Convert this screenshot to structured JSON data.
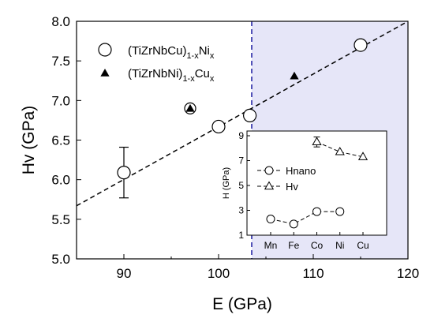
{
  "chart_data": {
    "type": "scatter",
    "xlabel": "E (GPa)",
    "ylabel": "Hv (GPa)",
    "xlim": [
      85,
      120
    ],
    "ylim": [
      5.0,
      8.0
    ],
    "xticks": [
      90,
      100,
      110,
      120
    ],
    "yticks": [
      5.0,
      5.5,
      6.0,
      6.5,
      7.0,
      7.5,
      8.0
    ],
    "xtick_labels": [
      "90",
      "100",
      "110",
      "120"
    ],
    "ytick_labels": [
      "5.0",
      "5.5",
      "6.0",
      "6.5",
      "7.0",
      "7.5",
      "8.0"
    ],
    "grid": false,
    "legend_position": "top-left",
    "shaded_region": {
      "x_from": 103.5,
      "x_to": 120,
      "color": "#e6e6f8",
      "border_color": "#1a1aa0"
    },
    "series": [
      {
        "name": "(TiZrNbCu)1-xNix",
        "legend_parts": [
          "(TiZrNbCu)",
          "1-x",
          "Ni",
          "x"
        ],
        "marker": "open-circle",
        "points": [
          {
            "x": 90,
            "y": 6.09,
            "yerr": [
              5.77,
              6.41
            ]
          },
          {
            "x": 100,
            "y": 6.67
          },
          {
            "x": 103.3,
            "y": 6.81
          },
          {
            "x": 115,
            "y": 7.7
          }
        ]
      },
      {
        "name": "(TiZrNbNi)1-xCux",
        "legend_parts": [
          "(TiZrNbNi)",
          "1-x",
          "Cu",
          "x"
        ],
        "marker": "filled-triangle",
        "points": [
          {
            "x": 97,
            "y": 6.9,
            "ring": true
          },
          {
            "x": 108,
            "y": 7.31
          }
        ]
      }
    ],
    "fit_line": {
      "style": "dashed",
      "x1": 85,
      "y1": 5.67,
      "x2": 120,
      "y2": 8.0
    },
    "inset": {
      "ylabel": "H (GPa)",
      "ylim": [
        1,
        9
      ],
      "yticks": [
        1,
        3,
        5,
        7,
        9
      ],
      "ytick_labels": [
        "1",
        "3",
        "5",
        "7",
        "9"
      ],
      "categories": [
        "Mn",
        "Fe",
        "Co",
        "Ni",
        "Cu"
      ],
      "legend": [
        "Hnano",
        "Hv"
      ],
      "series": [
        {
          "name": "Hnano",
          "marker": "open-circle",
          "values": [
            2.3,
            1.9,
            2.9,
            2.9,
            null
          ]
        },
        {
          "name": "Hv",
          "marker": "open-triangle",
          "values": [
            null,
            null,
            8.5,
            7.7,
            7.3
          ],
          "yerr": [
            null,
            null,
            0.4,
            null,
            null
          ]
        }
      ]
    }
  }
}
